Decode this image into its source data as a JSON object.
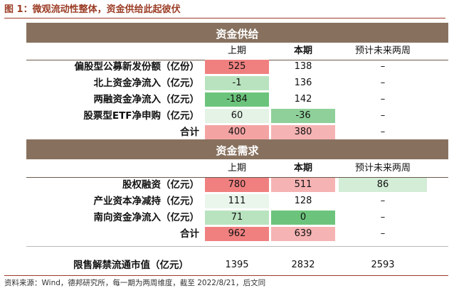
{
  "figure_title": "图 1：微观流动性整体，资金供给此起彼伏",
  "supply": {
    "title": "资金供给",
    "headers": [
      "上期",
      "本期",
      "预计未来两周"
    ],
    "rows": [
      {
        "label": "偏股型公募新发份额（亿份）",
        "values": [
          "525",
          "138",
          "–"
        ],
        "colors": [
          "#f08080",
          "",
          ""
        ]
      },
      {
        "label": "北上资金净流入（亿元）",
        "values": [
          "-1",
          "136",
          "–"
        ],
        "colors": [
          "#b9e3bf",
          "",
          ""
        ]
      },
      {
        "label": "两融资金净流入（亿元）",
        "values": [
          "-184",
          "142",
          "–"
        ],
        "colors": [
          "#6cc47c",
          "",
          ""
        ]
      },
      {
        "label": "股票型ETF净申购（亿元）",
        "values": [
          "60",
          "-36",
          "–"
        ],
        "colors": [
          "#e4f3e6",
          "#8fd09a",
          ""
        ]
      },
      {
        "label": "合计",
        "values": [
          "400",
          "380",
          "–"
        ],
        "colors": [
          "#f4a3a3",
          "#f6b3b3",
          ""
        ]
      }
    ]
  },
  "demand": {
    "title": "资金需求",
    "headers": [
      "上期",
      "本期",
      "预计未来两周"
    ],
    "rows": [
      {
        "label": "股权融资（亿元）",
        "values": [
          "780",
          "511",
          "86"
        ],
        "colors": [
          "#f08080",
          "#f6b3b3",
          "#d3edd6"
        ]
      },
      {
        "label": "产业资本净减持（亿元）",
        "values": [
          "111",
          "128",
          "–"
        ],
        "colors": [
          "#eaf6ec",
          "",
          ""
        ]
      },
      {
        "label": "南向资金净流入（亿元）",
        "values": [
          "71",
          "0",
          "–"
        ],
        "colors": [
          "#b9e3bf",
          "#6cc47c",
          ""
        ]
      },
      {
        "label": "合计",
        "values": [
          "962",
          "639",
          "–"
        ],
        "colors": [
          "#f08080",
          "#f6b3b3",
          ""
        ]
      }
    ]
  },
  "restricted": {
    "label": "限售解禁流通市值（亿元）",
    "values": [
      "1395",
      "2832",
      "2593"
    ]
  },
  "footer": "资料来源：Wind，德邦研究所，每一期为两周维度，截至 2022/8/21，后文同"
}
